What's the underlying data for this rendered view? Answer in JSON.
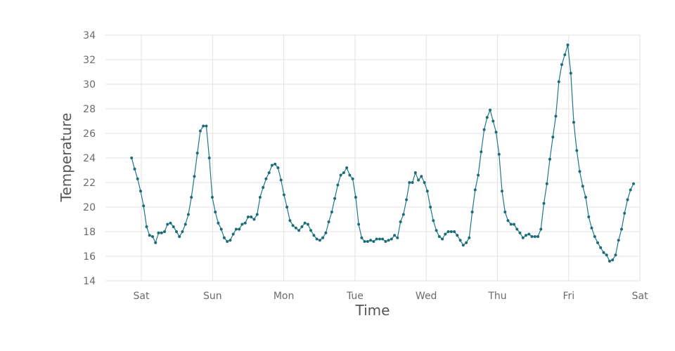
{
  "chart_data": {
    "type": "line",
    "title": "",
    "xlabel": "Time",
    "ylabel": "Temperature",
    "x_tick_labels": [
      "Sat",
      "Sun",
      "Mon",
      "Tue",
      "Wed",
      "Thu",
      "Fri",
      "Sat"
    ],
    "y_tick_labels": [
      "14",
      "16",
      "18",
      "20",
      "22",
      "24",
      "26",
      "28",
      "30",
      "32",
      "34"
    ],
    "ylim": [
      14,
      34
    ],
    "xlim_days": [
      0,
      7
    ],
    "grid": true,
    "line_color": "#1b7a8a",
    "point_color": "#1b6b78",
    "series": [
      {
        "values": [
          24.0,
          23.1,
          22.3,
          21.3,
          20.1,
          18.4,
          17.7,
          17.6,
          17.1,
          17.9,
          17.9,
          18.0,
          18.6,
          18.7,
          18.4,
          18.0,
          17.6,
          18.0,
          18.6,
          19.4,
          20.8,
          22.5,
          24.4,
          26.2,
          26.6,
          26.6,
          24.0,
          20.8,
          19.6,
          18.7,
          18.2,
          17.5,
          17.2,
          17.3,
          17.8,
          18.2,
          18.2,
          18.6,
          18.7,
          19.2,
          19.2,
          19.0,
          19.4,
          20.8,
          21.6,
          22.3,
          22.8,
          23.4,
          23.5,
          23.2,
          22.2,
          21.0,
          20.0,
          18.9,
          18.5,
          18.3,
          18.1,
          18.4,
          18.7,
          18.6,
          18.1,
          17.7,
          17.4,
          17.3,
          17.5,
          17.9,
          18.8,
          19.6,
          20.7,
          21.8,
          22.6,
          22.8,
          23.2,
          22.6,
          22.3,
          20.8,
          18.6,
          17.5,
          17.2,
          17.2,
          17.3,
          17.2,
          17.4,
          17.4,
          17.4,
          17.2,
          17.3,
          17.4,
          17.7,
          17.5,
          18.8,
          19.4,
          20.6,
          22.0,
          22.0,
          22.8,
          22.2,
          22.5,
          22.0,
          21.3,
          20.0,
          18.9,
          18.1,
          17.6,
          17.4,
          17.8,
          18.0,
          18.0,
          18.0,
          17.7,
          17.3,
          16.9,
          17.1,
          17.5,
          19.6,
          21.4,
          22.6,
          24.5,
          26.3,
          27.3,
          27.9,
          27.0,
          26.1,
          24.3,
          21.3,
          19.6,
          18.9,
          18.6,
          18.6,
          18.2,
          17.9,
          17.5,
          17.7,
          17.8,
          17.6,
          17.6,
          17.6,
          18.2,
          20.3,
          21.9,
          23.9,
          25.7,
          27.4,
          30.2,
          31.6,
          32.4,
          33.2,
          30.9,
          26.9,
          24.6,
          22.9,
          21.7,
          20.8,
          19.2,
          18.3,
          17.6,
          17.1,
          16.7,
          16.3,
          16.1,
          15.6,
          15.7,
          16.1,
          17.3,
          18.2,
          19.5,
          20.6,
          21.4,
          21.9
        ]
      }
    ]
  }
}
